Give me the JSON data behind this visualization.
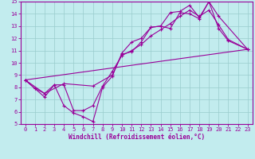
{
  "xlabel": "Windchill (Refroidissement éolien,°C)",
  "xlim": [
    -0.5,
    23.5
  ],
  "ylim": [
    5,
    15
  ],
  "xticks": [
    0,
    1,
    2,
    3,
    4,
    5,
    6,
    7,
    8,
    9,
    10,
    11,
    12,
    13,
    14,
    15,
    16,
    17,
    18,
    19,
    20,
    21,
    22,
    23
  ],
  "yticks": [
    5,
    6,
    7,
    8,
    9,
    10,
    11,
    12,
    13,
    14,
    15
  ],
  "bg_color": "#c2ecee",
  "line_color": "#990099",
  "grid_color": "#99cccc",
  "line1_x": [
    0,
    1,
    2,
    3,
    4,
    5,
    6,
    7,
    8,
    9,
    10,
    11,
    12,
    13,
    14,
    15,
    16,
    17,
    18,
    19,
    20,
    21,
    23
  ],
  "line1_y": [
    8.6,
    7.9,
    7.2,
    8.2,
    6.5,
    5.9,
    5.6,
    5.2,
    8.0,
    8.9,
    10.8,
    11.7,
    12.0,
    12.9,
    13.0,
    14.1,
    14.2,
    14.7,
    13.7,
    15.0,
    12.8,
    11.8,
    11.1
  ],
  "line2_x": [
    0,
    1,
    2,
    3,
    4,
    5,
    6,
    7,
    8,
    9,
    10,
    11,
    12,
    13,
    14,
    15,
    16,
    17,
    18,
    19,
    20,
    21,
    23
  ],
  "line2_y": [
    8.6,
    7.9,
    7.5,
    8.2,
    8.2,
    6.1,
    6.1,
    6.5,
    8.1,
    9.3,
    10.6,
    11.0,
    11.5,
    12.2,
    12.7,
    13.2,
    13.8,
    14.3,
    13.8,
    14.3,
    13.1,
    11.9,
    11.1
  ],
  "line3_x": [
    0,
    2,
    4,
    7,
    9,
    10,
    11,
    12,
    13,
    14,
    15,
    16,
    17,
    18,
    19,
    20,
    23
  ],
  "line3_y": [
    8.6,
    7.5,
    8.3,
    8.1,
    9.0,
    10.7,
    10.9,
    11.7,
    12.9,
    13.0,
    12.8,
    14.1,
    14.0,
    13.6,
    15.0,
    13.8,
    11.1
  ],
  "line4_x": [
    0,
    23
  ],
  "line4_y": [
    8.6,
    11.1
  ]
}
